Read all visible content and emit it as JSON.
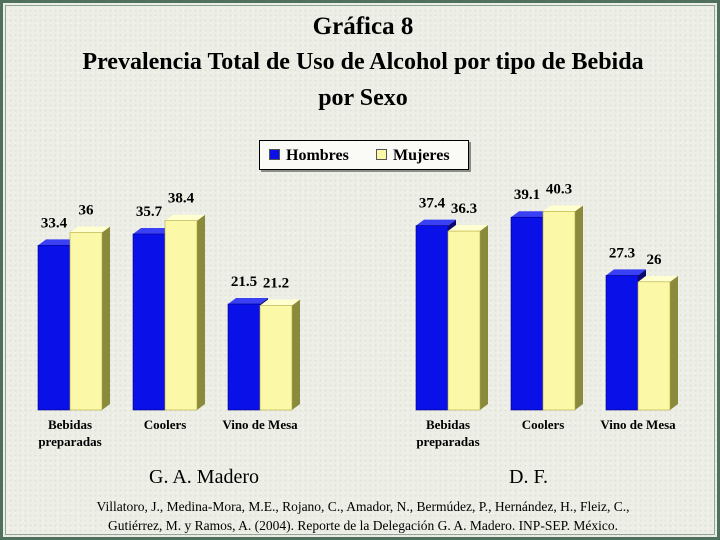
{
  "title": {
    "line1": "Gráfica 8",
    "line2": "Prevalencia Total de Uso de Alcohol por tipo de Bebida",
    "line3": "por Sexo"
  },
  "legend": {
    "hombres": "Hombres",
    "mujeres": "Mujeres"
  },
  "colors": {
    "hombres": "#0a10e8",
    "mujeres": "#fbf8a8"
  },
  "chart_data": {
    "type": "bar",
    "legend_position": "top-center",
    "grid": false,
    "series_names": [
      "Hombres",
      "Mujeres"
    ],
    "groups": [
      {
        "name": "G. A. Madero",
        "categories": [
          [
            "Bebidas",
            "preparadas"
          ],
          [
            "Coolers"
          ],
          [
            "Vino de Mesa"
          ]
        ],
        "series": [
          {
            "name": "Hombres",
            "values": [
              33.4,
              35.7,
              21.5
            ]
          },
          {
            "name": "Mujeres",
            "values": [
              36,
              38.4,
              21.2
            ]
          }
        ]
      },
      {
        "name": "D. F.",
        "categories": [
          [
            "Bebidas",
            "preparadas"
          ],
          [
            "Coolers"
          ],
          [
            "Vino de Mesa"
          ]
        ],
        "series": [
          {
            "name": "Hombres",
            "values": [
              37.4,
              39.1,
              27.3
            ]
          },
          {
            "name": "Mujeres",
            "values": [
              36.3,
              40.3,
              26
            ]
          }
        ]
      }
    ]
  },
  "source": {
    "line1": "Villatoro, J., Medina-Mora, M.E., Rojano, C., Amador, N., Bermúdez, P., Hernández, H., Fleiz, C.,",
    "line2": "Gutiérrez, M. y Ramos, A. (2004). Reporte de la Delegación G. A. Madero. INP-SEP. México."
  }
}
